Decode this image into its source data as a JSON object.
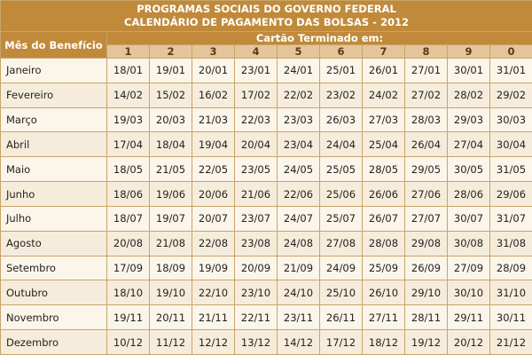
{
  "header": {
    "title_line1": "PROGRAMAS SOCIAIS DO GOVERNO FEDERAL",
    "title_line2": "CALENDÁRIO DE PAGAMENTO DAS BOLSAS - 2012",
    "month_column_label": "Mês do Benefício",
    "card_group_label": "Cartão Terminado em:",
    "card_digits": [
      "1",
      "2",
      "3",
      "4",
      "5",
      "6",
      "7",
      "8",
      "9",
      "0"
    ]
  },
  "colors": {
    "header_background": "#c08a3a",
    "digit_header_background": "#e4c59a",
    "border": "#c8a46a",
    "row_background": "#fbf5ea"
  },
  "rows": [
    {
      "month": "Janeiro",
      "dates": [
        "18/01",
        "19/01",
        "20/01",
        "23/01",
        "24/01",
        "25/01",
        "26/01",
        "27/01",
        "30/01",
        "31/01"
      ]
    },
    {
      "month": "Fevereiro",
      "dates": [
        "14/02",
        "15/02",
        "16/02",
        "17/02",
        "22/02",
        "23/02",
        "24/02",
        "27/02",
        "28/02",
        "29/02"
      ]
    },
    {
      "month": "Março",
      "dates": [
        "19/03",
        "20/03",
        "21/03",
        "22/03",
        "23/03",
        "26/03",
        "27/03",
        "28/03",
        "29/03",
        "30/03"
      ]
    },
    {
      "month": "Abril",
      "dates": [
        "17/04",
        "18/04",
        "19/04",
        "20/04",
        "23/04",
        "24/04",
        "25/04",
        "26/04",
        "27/04",
        "30/04"
      ]
    },
    {
      "month": "Maio",
      "dates": [
        "18/05",
        "21/05",
        "22/05",
        "23/05",
        "24/05",
        "25/05",
        "28/05",
        "29/05",
        "30/05",
        "31/05"
      ]
    },
    {
      "month": "Junho",
      "dates": [
        "18/06",
        "19/06",
        "20/06",
        "21/06",
        "22/06",
        "25/06",
        "26/06",
        "27/06",
        "28/06",
        "29/06"
      ]
    },
    {
      "month": "Julho",
      "dates": [
        "18/07",
        "19/07",
        "20/07",
        "23/07",
        "24/07",
        "25/07",
        "26/07",
        "27/07",
        "30/07",
        "31/07"
      ]
    },
    {
      "month": "Agosto",
      "dates": [
        "20/08",
        "21/08",
        "22/08",
        "23/08",
        "24/08",
        "27/08",
        "28/08",
        "29/08",
        "30/08",
        "31/08"
      ]
    },
    {
      "month": "Setembro",
      "dates": [
        "17/09",
        "18/09",
        "19/09",
        "20/09",
        "21/09",
        "24/09",
        "25/09",
        "26/09",
        "27/09",
        "28/09"
      ]
    },
    {
      "month": "Outubro",
      "dates": [
        "18/10",
        "19/10",
        "22/10",
        "23/10",
        "24/10",
        "25/10",
        "26/10",
        "29/10",
        "30/10",
        "31/10"
      ]
    },
    {
      "month": "Novembro",
      "dates": [
        "19/11",
        "20/11",
        "21/11",
        "22/11",
        "23/11",
        "26/11",
        "27/11",
        "28/11",
        "29/11",
        "30/11"
      ]
    },
    {
      "month": "Dezembro",
      "dates": [
        "10/12",
        "11/12",
        "12/12",
        "13/12",
        "14/12",
        "17/12",
        "18/12",
        "19/12",
        "20/12",
        "21/12"
      ]
    }
  ]
}
